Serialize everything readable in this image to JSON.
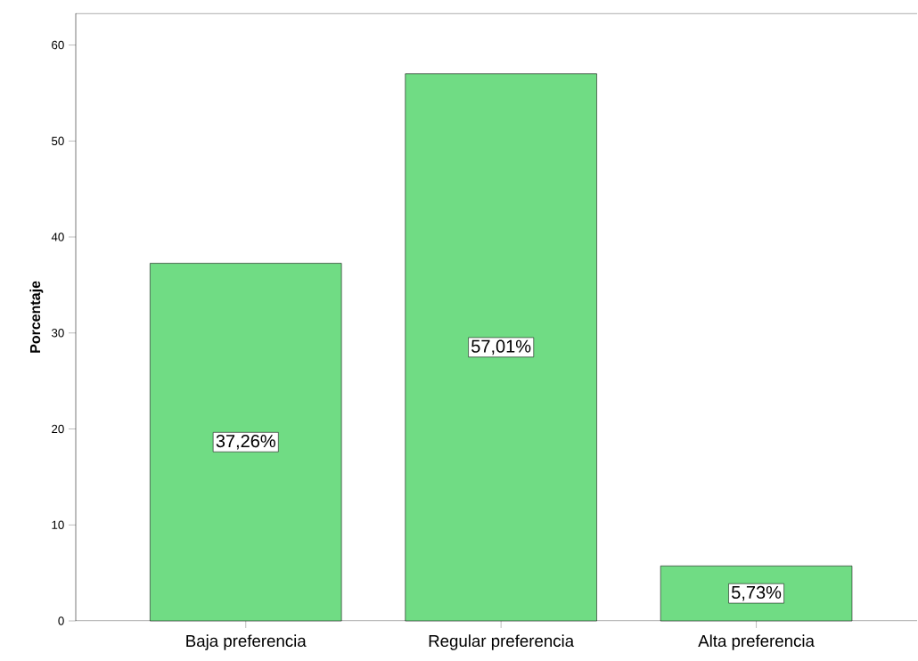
{
  "chart_data": {
    "type": "bar",
    "ylabel": "Porcentaje",
    "categories": [
      "Baja preferencia",
      "Regular preferencia",
      "Alta preferencia"
    ],
    "values": [
      37.26,
      57.01,
      5.73
    ],
    "value_labels": [
      "37,26%",
      "57,01%",
      "5,73%"
    ],
    "color": "#70dc84",
    "ylim": [
      0,
      63.3
    ],
    "yticks": [
      0,
      10,
      20,
      30,
      40,
      50,
      60
    ]
  }
}
